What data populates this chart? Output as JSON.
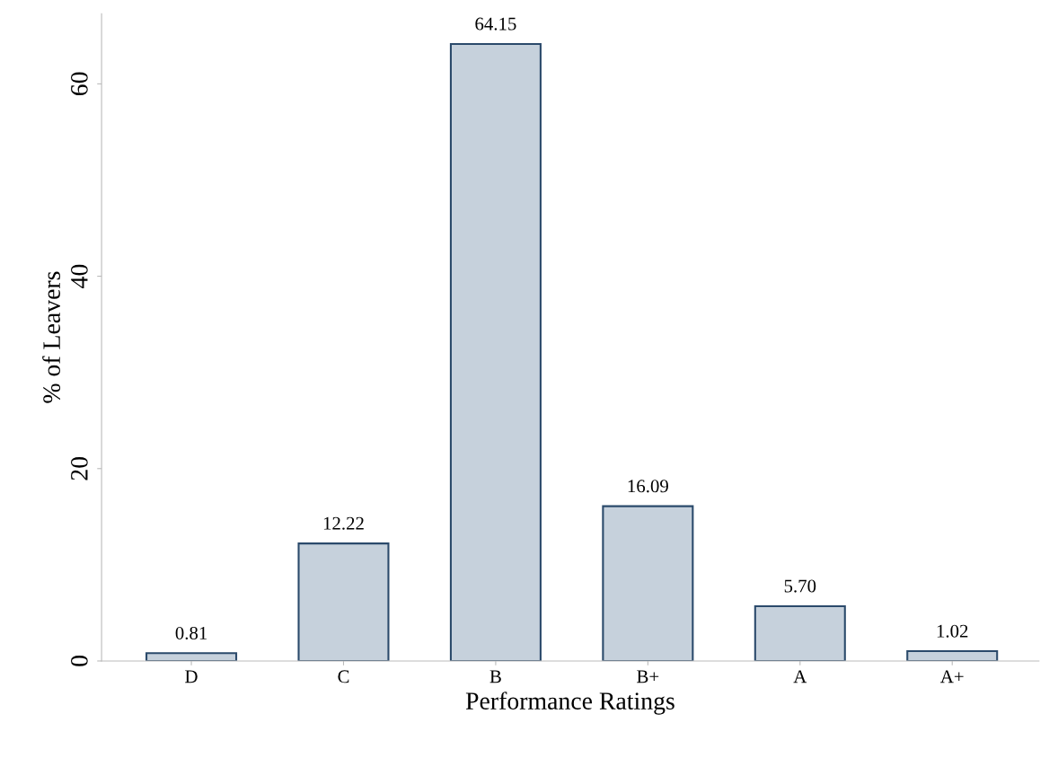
{
  "chart_data": {
    "type": "bar",
    "xlabel": "Performance Ratings",
    "ylabel": "% of Leavers",
    "categories": [
      "D",
      "C",
      "B",
      "B+",
      "A",
      "A+"
    ],
    "values": [
      0.81,
      12.22,
      64.15,
      16.09,
      5.7,
      1.02
    ],
    "value_labels": [
      "0.81",
      "12.22",
      "64.15",
      "16.09",
      "5.70",
      "1.02"
    ],
    "color": "#c6d1dc",
    "ylim": [
      0,
      67.3
    ],
    "yticks": [
      0,
      20,
      40,
      60
    ],
    "grid": false,
    "legend": false
  }
}
